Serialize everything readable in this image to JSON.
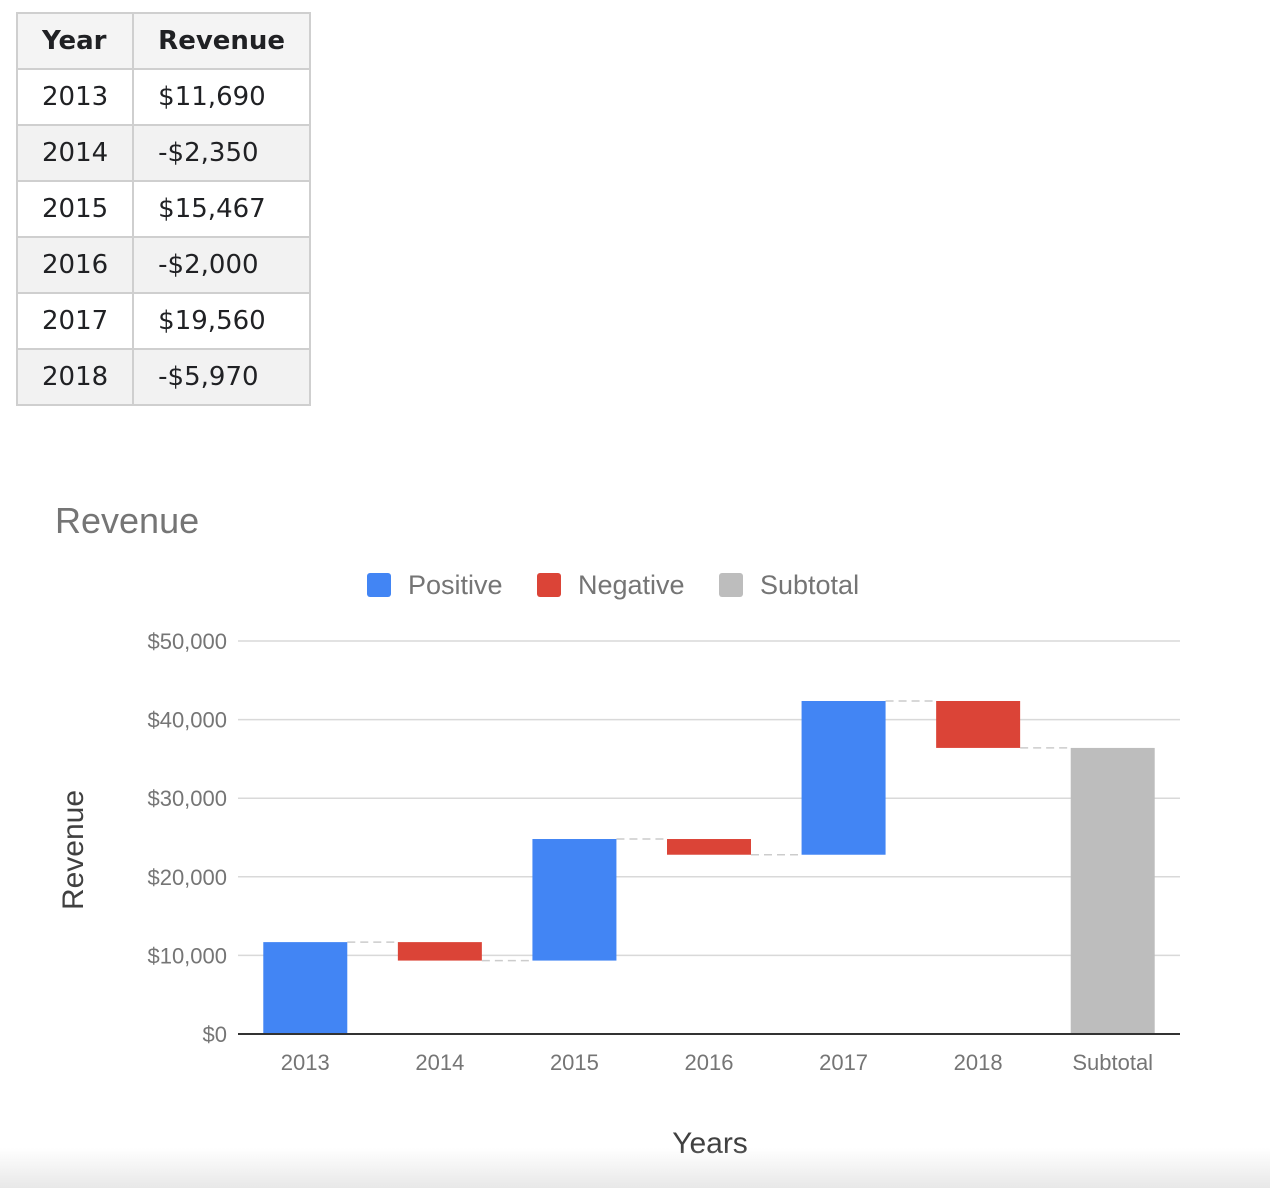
{
  "table": {
    "headers": [
      "Year",
      "Revenue"
    ],
    "rows": [
      [
        "2013",
        "$11,690"
      ],
      [
        "2014",
        "-$2,350"
      ],
      [
        "2015",
        "$15,467"
      ],
      [
        "2016",
        "-$2,000"
      ],
      [
        "2017",
        "$19,560"
      ],
      [
        "2018",
        "-$5,970"
      ]
    ]
  },
  "chart_data": {
    "type": "waterfall",
    "title": "Revenue",
    "xlabel": "Years",
    "ylabel": "Revenue",
    "categories": [
      "2013",
      "2014",
      "2015",
      "2016",
      "2017",
      "2018",
      "Subtotal"
    ],
    "values": [
      11690,
      -2350,
      15467,
      -2000,
      19560,
      -5970,
      36397
    ],
    "bar_kinds": [
      "positive",
      "negative",
      "positive",
      "negative",
      "positive",
      "negative",
      "subtotal"
    ],
    "legend": [
      {
        "name": "Positive",
        "kind": "positive",
        "color": "#4285f4"
      },
      {
        "name": "Negative",
        "kind": "negative",
        "color": "#db4437"
      },
      {
        "name": "Subtotal",
        "kind": "subtotal",
        "color": "#bdbdbd"
      }
    ],
    "legend_position": "top",
    "ylim": [
      0,
      50000
    ],
    "yticks": [
      0,
      10000,
      20000,
      30000,
      40000,
      50000
    ],
    "ytick_labels": [
      "$0",
      "$10,000",
      "$20,000",
      "$30,000",
      "$40,000",
      "$50,000"
    ],
    "grid": true
  }
}
